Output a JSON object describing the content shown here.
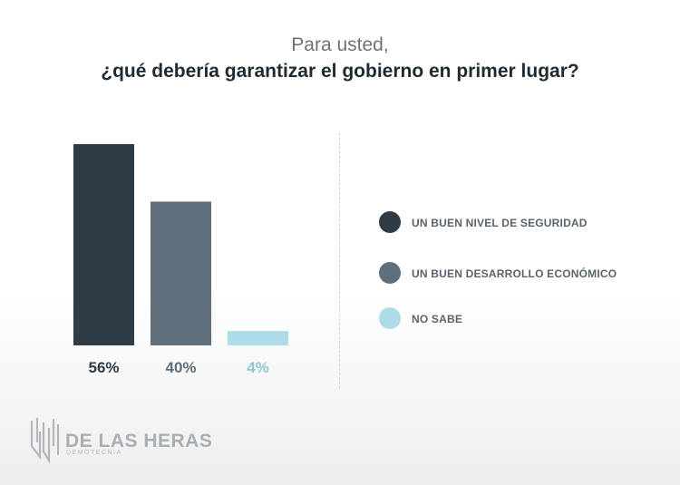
{
  "header": {
    "line1": "Para usted,",
    "line2": "¿qué debería garantizar el gobierno en primer lugar?"
  },
  "chart_data": {
    "type": "bar",
    "categories": [
      "UN BUEN NIVEL DE SEGURIDAD",
      "UN BUEN DESARROLLO ECONÓMICO",
      "NO SABE"
    ],
    "values": [
      56,
      40,
      4
    ],
    "value_labels": [
      "56%",
      "40%",
      "4%"
    ],
    "colors": [
      "#2f3b45",
      "#5f6f7c",
      "#acdce8"
    ],
    "label_colors": [
      "#2f3b45",
      "#5f6f7c",
      "#8fc5d4"
    ],
    "ylim": [
      0,
      56
    ],
    "grid": false,
    "legend_placement": "right"
  },
  "logo": {
    "name": "DE LAS HERAS",
    "subtitle": "DEMOTECNIA"
  }
}
